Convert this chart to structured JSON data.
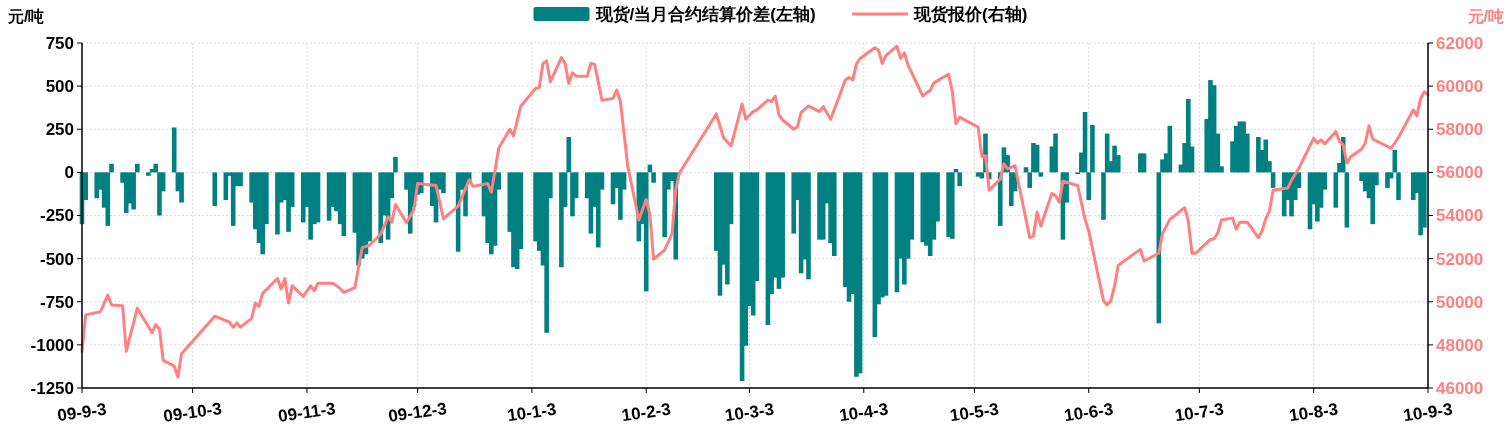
{
  "chart_data": {
    "type": "bar",
    "ylabel": "元/吨",
    "y2label": "元/吨",
    "legend": "top",
    "grid": true,
    "xlim": [
      "2009-09-03",
      "2010-09-03"
    ],
    "xticks": [
      {
        "value": "2009-09-03",
        "label": "09-9-3"
      },
      {
        "value": "2009-10-03",
        "label": "09-10-3"
      },
      {
        "value": "2009-11-03",
        "label": "09-11-3"
      },
      {
        "value": "2009-12-03",
        "label": "09-12-3"
      },
      {
        "value": "2010-01-03",
        "label": "10-1-3"
      },
      {
        "value": "2010-02-03",
        "label": "10-2-3"
      },
      {
        "value": "2010-03-03",
        "label": "10-3-3"
      },
      {
        "value": "2010-04-03",
        "label": "10-4-3"
      },
      {
        "value": "2010-05-03",
        "label": "10-5-3"
      },
      {
        "value": "2010-06-03",
        "label": "10-6-3"
      },
      {
        "value": "2010-07-03",
        "label": "10-7-3"
      },
      {
        "value": "2010-08-03",
        "label": "10-8-3"
      },
      {
        "value": "2010-09-03",
        "label": "10-9-3"
      }
    ],
    "ylim": [
      -1250,
      750
    ],
    "yticks": [
      -1250,
      -1000,
      -750,
      -500,
      -250,
      0,
      250,
      500,
      750
    ],
    "y2lim": [
      46000,
      62000
    ],
    "y2ticks": [
      46000,
      48000,
      50000,
      52000,
      54000,
      56000,
      58000,
      60000,
      62000
    ],
    "series": [
      {
        "name": "现货/当月合约结算价差(左轴)",
        "color": "#008080",
        "x": [
          "2009-09-03",
          "2009-09-04",
          "2009-09-07",
          "2009-09-08",
          "2009-09-09",
          "2009-09-10",
          "2009-09-11",
          "2009-09-14",
          "2009-09-15",
          "2009-09-16",
          "2009-09-17",
          "2009-09-18",
          "2009-09-21",
          "2009-09-22",
          "2009-09-23",
          "2009-09-24",
          "2009-09-25",
          "2009-09-28",
          "2009-09-29",
          "2009-09-30",
          "2009-10-09",
          "2009-10-12",
          "2009-10-13",
          "2009-10-14",
          "2009-10-15",
          "2009-10-16",
          "2009-10-19",
          "2009-10-20",
          "2009-10-21",
          "2009-10-22",
          "2009-10-23",
          "2009-10-26",
          "2009-10-27",
          "2009-10-28",
          "2009-10-29",
          "2009-10-30",
          "2009-11-02",
          "2009-11-03",
          "2009-11-04",
          "2009-11-05",
          "2009-11-06",
          "2009-11-09",
          "2009-11-10",
          "2009-11-11",
          "2009-11-12",
          "2009-11-13",
          "2009-11-16",
          "2009-11-17",
          "2009-11-18",
          "2009-11-19",
          "2009-11-20",
          "2009-11-23",
          "2009-11-24",
          "2009-11-25",
          "2009-11-26",
          "2009-11-27",
          "2009-11-30",
          "2009-12-01",
          "2009-12-02",
          "2009-12-03",
          "2009-12-04",
          "2009-12-07",
          "2009-12-08",
          "2009-12-09",
          "2009-12-10",
          "2009-12-14",
          "2009-12-15",
          "2009-12-16",
          "2009-12-17",
          "2009-12-21",
          "2009-12-22",
          "2009-12-23",
          "2009-12-24",
          "2009-12-25",
          "2009-12-28",
          "2009-12-29",
          "2009-12-30",
          "2009-12-31",
          "2010-01-04",
          "2010-01-05",
          "2010-01-06",
          "2010-01-07",
          "2010-01-08",
          "2010-01-11",
          "2010-01-12",
          "2010-01-13",
          "2010-01-14",
          "2010-01-15",
          "2010-01-18",
          "2010-01-19",
          "2010-01-20",
          "2010-01-21",
          "2010-01-22",
          "2010-01-25",
          "2010-01-26",
          "2010-01-27",
          "2010-01-28",
          "2010-02-01",
          "2010-02-02",
          "2010-02-03",
          "2010-02-04",
          "2010-02-05",
          "2010-02-08",
          "2010-02-09",
          "2010-02-10",
          "2010-02-11",
          "2010-02-22",
          "2010-02-23",
          "2010-02-24",
          "2010-02-25",
          "2010-02-26",
          "2010-03-01",
          "2010-03-02",
          "2010-03-03",
          "2010-03-04",
          "2010-03-05",
          "2010-03-08",
          "2010-03-09",
          "2010-03-10",
          "2010-03-11",
          "2010-03-12",
          "2010-03-15",
          "2010-03-16",
          "2010-03-17",
          "2010-03-18",
          "2010-03-19",
          "2010-03-22",
          "2010-03-23",
          "2010-03-24",
          "2010-03-25",
          "2010-03-26",
          "2010-03-29",
          "2010-03-30",
          "2010-03-31",
          "2010-04-01",
          "2010-04-02",
          "2010-04-06",
          "2010-04-07",
          "2010-04-08",
          "2010-04-09",
          "2010-04-12",
          "2010-04-13",
          "2010-04-14",
          "2010-04-15",
          "2010-04-16",
          "2010-04-19",
          "2010-04-20",
          "2010-04-21",
          "2010-04-22",
          "2010-04-23",
          "2010-04-26",
          "2010-04-27",
          "2010-04-28",
          "2010-04-29",
          "2010-05-04",
          "2010-05-05",
          "2010-05-06",
          "2010-05-07",
          "2010-05-10",
          "2010-05-11",
          "2010-05-12",
          "2010-05-13",
          "2010-05-14",
          "2010-05-17",
          "2010-05-18",
          "2010-05-19",
          "2010-05-20",
          "2010-05-21",
          "2010-05-24",
          "2010-05-25",
          "2010-05-27",
          "2010-05-28",
          "2010-05-31",
          "2010-06-01",
          "2010-06-02",
          "2010-06-03",
          "2010-06-04",
          "2010-06-07",
          "2010-06-08",
          "2010-06-09",
          "2010-06-10",
          "2010-06-11",
          "2010-06-17",
          "2010-06-18",
          "2010-06-22",
          "2010-06-23",
          "2010-06-24",
          "2010-06-25",
          "2010-06-28",
          "2010-06-29",
          "2010-06-30",
          "2010-07-01",
          "2010-07-05",
          "2010-07-06",
          "2010-07-07",
          "2010-07-08",
          "2010-07-09",
          "2010-07-12",
          "2010-07-13",
          "2010-07-14",
          "2010-07-15",
          "2010-07-16",
          "2010-07-19",
          "2010-07-20",
          "2010-07-21",
          "2010-07-22",
          "2010-07-23",
          "2010-07-26",
          "2010-07-27",
          "2010-07-28",
          "2010-07-29",
          "2010-07-30",
          "2010-08-02",
          "2010-08-03",
          "2010-08-04",
          "2010-08-05",
          "2010-08-06",
          "2010-08-09",
          "2010-08-10",
          "2010-08-11",
          "2010-08-12",
          "2010-08-16",
          "2010-08-17",
          "2010-08-18",
          "2010-08-19",
          "2010-08-20",
          "2010-08-23",
          "2010-08-24",
          "2010-08-25",
          "2010-08-26",
          "2010-08-30",
          "2010-08-31",
          "2010-09-01",
          "2010-09-02"
        ],
        "values": [
          -300,
          -160,
          -150,
          -100,
          -205,
          -310,
          50,
          -60,
          -235,
          -180,
          -215,
          50,
          -20,
          20,
          50,
          -250,
          -110,
          260,
          -110,
          -175,
          -195,
          -160,
          -20,
          -310,
          -80,
          -80,
          -175,
          -330,
          -410,
          -475,
          -300,
          -360,
          -175,
          -160,
          -345,
          -200,
          -290,
          -200,
          -390,
          -300,
          -290,
          -280,
          -200,
          -225,
          -300,
          -370,
          -350,
          -540,
          -500,
          -475,
          -400,
          -410,
          -250,
          -390,
          -150,
          90,
          -100,
          -355,
          -200,
          -130,
          -120,
          -195,
          -290,
          -100,
          -120,
          -460,
          -100,
          -255,
          -50,
          -255,
          -410,
          -475,
          -425,
          -100,
          -345,
          -550,
          -560,
          -445,
          -400,
          -455,
          -540,
          -930,
          -150,
          -550,
          -200,
          205,
          -255,
          -150,
          -150,
          -355,
          -200,
          -435,
          -100,
          -185,
          -90,
          -275,
          -100,
          -400,
          -300,
          -690,
          45,
          -60,
          -375,
          -100,
          -50,
          -505,
          -455,
          -715,
          -535,
          -650,
          -300,
          -1210,
          -1005,
          -775,
          -830,
          -630,
          -885,
          -705,
          -610,
          -675,
          -610,
          -355,
          -160,
          -585,
          -505,
          -620,
          -390,
          -390,
          -180,
          -410,
          -485,
          -665,
          -750,
          -705,
          -1185,
          -1165,
          -955,
          -765,
          -725,
          -715,
          -695,
          -500,
          -650,
          -500,
          -390,
          -405,
          -425,
          -485,
          -390,
          -285,
          -375,
          -385,
          20,
          -80,
          -25,
          -35,
          225,
          -40,
          -310,
          145,
          100,
          -195,
          -110,
          30,
          -90,
          170,
          160,
          -25,
          150,
          225,
          -390,
          -175,
          -10,
          115,
          350,
          -160,
          275,
          -275,
          225,
          65,
          155,
          100,
          110,
          110,
          -875,
          75,
          110,
          270,
          45,
          170,
          425,
          150,
          310,
          535,
          505,
          225,
          35,
          180,
          270,
          295,
          295,
          225,
          205,
          130,
          190,
          65,
          -90,
          -255,
          -160,
          -255,
          -160,
          -90,
          -330,
          -185,
          -285,
          -205,
          -100,
          -205,
          55,
          205,
          -320,
          -50,
          -110,
          -150,
          -300,
          -75,
          -90,
          -35,
          130,
          -160,
          -160,
          -120,
          -365,
          -320
        ]
      },
      {
        "name": "现货报价(右轴)",
        "type": "line",
        "axis": "y2",
        "color": "#ff8080",
        "x": [
          "2009-09-03",
          "2009-09-04",
          "2009-09-08",
          "2009-09-10",
          "2009-09-11",
          "2009-09-14",
          "2009-09-15",
          "2009-09-18",
          "2009-09-22",
          "2009-09-23",
          "2009-09-24",
          "2009-09-25",
          "2009-09-28",
          "2009-09-29",
          "2009-09-30",
          "2009-10-09",
          "2009-10-13",
          "2009-10-14",
          "2009-10-15",
          "2009-10-16",
          "2009-10-19",
          "2009-10-20",
          "2009-10-21",
          "2009-10-22",
          "2009-10-23",
          "2009-10-26",
          "2009-10-27",
          "2009-10-28",
          "2009-10-29",
          "2009-10-30",
          "2009-11-02",
          "2009-11-04",
          "2009-11-05",
          "2009-11-06",
          "2009-11-10",
          "2009-11-12",
          "2009-11-13",
          "2009-11-16",
          "2009-11-17",
          "2009-11-18",
          "2009-11-20",
          "2009-11-23",
          "2009-11-25",
          "2009-11-26",
          "2009-11-27",
          "2009-11-30",
          "2009-12-02",
          "2009-12-03",
          "2009-12-08",
          "2009-12-10",
          "2009-12-14",
          "2009-12-17",
          "2009-12-18",
          "2009-12-22",
          "2009-12-23",
          "2009-12-25",
          "2009-12-28",
          "2009-12-29",
          "2009-12-31",
          "2010-01-04",
          "2010-01-05",
          "2010-01-06",
          "2010-01-07",
          "2010-01-08",
          "2010-01-11",
          "2010-01-12",
          "2010-01-13",
          "2010-01-14",
          "2010-01-15",
          "2010-01-18",
          "2010-01-19",
          "2010-01-20",
          "2010-01-22",
          "2010-01-25",
          "2010-01-26",
          "2010-01-27",
          "2010-01-29",
          "2010-02-01",
          "2010-02-03",
          "2010-02-04",
          "2010-02-05",
          "2010-02-08",
          "2010-02-10",
          "2010-02-11",
          "2010-02-12",
          "2010-02-22",
          "2010-02-24",
          "2010-02-26",
          "2010-03-01",
          "2010-03-02",
          "2010-03-04",
          "2010-03-05",
          "2010-03-08",
          "2010-03-09",
          "2010-03-10",
          "2010-03-11",
          "2010-03-12",
          "2010-03-15",
          "2010-03-16",
          "2010-03-17",
          "2010-03-19",
          "2010-03-22",
          "2010-03-23",
          "2010-03-25",
          "2010-03-29",
          "2010-03-30",
          "2010-03-31",
          "2010-04-01",
          "2010-04-02",
          "2010-04-06",
          "2010-04-07",
          "2010-04-08",
          "2010-04-09",
          "2010-04-12",
          "2010-04-13",
          "2010-04-14",
          "2010-04-15",
          "2010-04-19",
          "2010-04-20",
          "2010-04-21",
          "2010-04-22",
          "2010-04-26",
          "2010-04-27",
          "2010-04-28",
          "2010-04-29",
          "2010-05-04",
          "2010-05-05",
          "2010-05-06",
          "2010-05-07",
          "2010-05-10",
          "2010-05-11",
          "2010-05-12",
          "2010-05-14",
          "2010-05-18",
          "2010-05-19",
          "2010-05-20",
          "2010-05-21",
          "2010-05-24",
          "2010-05-25",
          "2010-05-26",
          "2010-05-27",
          "2010-05-31",
          "2010-06-02",
          "2010-06-03",
          "2010-06-07",
          "2010-06-08",
          "2010-06-09",
          "2010-06-10",
          "2010-06-11",
          "2010-06-17",
          "2010-06-18",
          "2010-06-22",
          "2010-06-23",
          "2010-06-25",
          "2010-06-29",
          "2010-06-30",
          "2010-07-01",
          "2010-07-02",
          "2010-07-06",
          "2010-07-07",
          "2010-07-08",
          "2010-07-09",
          "2010-07-12",
          "2010-07-13",
          "2010-07-14",
          "2010-07-16",
          "2010-07-19",
          "2010-07-20",
          "2010-07-21",
          "2010-07-22",
          "2010-07-23",
          "2010-07-27",
          "2010-07-28",
          "2010-07-30",
          "2010-08-03",
          "2010-08-04",
          "2010-08-05",
          "2010-08-06",
          "2010-08-09",
          "2010-08-10",
          "2010-08-11",
          "2010-08-12",
          "2010-08-13",
          "2010-08-16",
          "2010-08-17",
          "2010-08-18",
          "2010-08-19",
          "2010-08-24",
          "2010-08-25",
          "2010-08-26",
          "2010-08-30",
          "2010-08-31",
          "2010-09-01",
          "2010-09-02",
          "2010-09-03"
        ],
        "values": [
          47700,
          49390,
          49540,
          50310,
          49850,
          49820,
          47700,
          49700,
          48560,
          48940,
          48740,
          47280,
          47020,
          46510,
          47590,
          49330,
          49050,
          48820,
          49020,
          48820,
          49230,
          49940,
          49790,
          50400,
          50560,
          51080,
          50590,
          51080,
          49940,
          50740,
          50250,
          50740,
          50510,
          50860,
          50860,
          50620,
          50430,
          50660,
          51630,
          52510,
          52620,
          53130,
          53940,
          53690,
          54510,
          53660,
          54280,
          55480,
          55390,
          53850,
          54430,
          55660,
          55350,
          55480,
          55080,
          57120,
          58000,
          57690,
          59080,
          59890,
          59940,
          61050,
          61170,
          60200,
          61320,
          61050,
          60120,
          60620,
          60460,
          60460,
          61050,
          61020,
          59350,
          59430,
          59820,
          59280,
          56280,
          53790,
          54740,
          54050,
          51970,
          52400,
          53170,
          55200,
          55970,
          58710,
          57590,
          57230,
          59170,
          58460,
          58820,
          58900,
          59350,
          59280,
          59540,
          58660,
          58430,
          58000,
          58120,
          58770,
          59080,
          58820,
          59050,
          58460,
          60280,
          60400,
          60280,
          61020,
          61280,
          61780,
          61660,
          61050,
          61430,
          61850,
          61280,
          61540,
          60970,
          59540,
          59690,
          59790,
          60150,
          60550,
          59740,
          58250,
          58560,
          58090,
          56740,
          56770,
          55170,
          55690,
          56400,
          56160,
          56310,
          52970,
          53050,
          54160,
          53510,
          55020,
          54920,
          54620,
          55590,
          55390,
          53820,
          53280,
          50050,
          49850,
          50050,
          50740,
          51690,
          52430,
          51890,
          52250,
          53170,
          53820,
          54360,
          53740,
          52250,
          52250,
          52890,
          52920,
          53200,
          53790,
          53890,
          53360,
          53690,
          53690,
          52970,
          53280,
          53850,
          54200,
          55170,
          55280,
          55630,
          56200,
          57590,
          57360,
          57510,
          57320,
          57890,
          57430,
          57280,
          56430,
          56710,
          57080,
          57360,
          58160,
          57540,
          57120,
          57360,
          57630,
          58890,
          58620,
          59430,
          59740,
          59590
        ]
      }
    ]
  }
}
